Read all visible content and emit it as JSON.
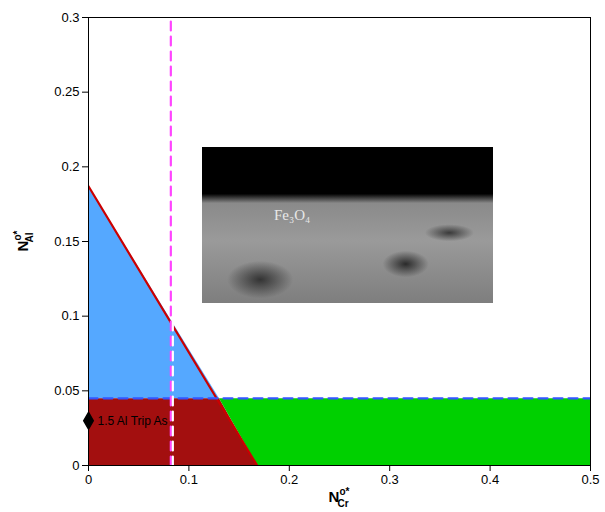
{
  "chart_data": {
    "type": "region_map",
    "xlabel": {
      "base": "N",
      "sup": "o*",
      "sub": "Cr"
    },
    "ylabel": {
      "base": "N",
      "sup": "o*",
      "sub": "Al"
    },
    "xlim": [
      0,
      0.5
    ],
    "ylim": [
      0,
      0.3
    ],
    "xticks": [
      0,
      0.1,
      0.2,
      0.3,
      0.4,
      0.5
    ],
    "yticks": [
      0,
      0.05,
      0.1,
      0.15,
      0.2,
      0.25,
      0.3
    ],
    "regions": [
      {
        "color": "#55a8ff",
        "points": [
          [
            0,
            0.045
          ],
          [
            0,
            0.187
          ],
          [
            0.13,
            0.045
          ]
        ]
      },
      {
        "color": "#a30f0f",
        "points": [
          [
            0,
            0
          ],
          [
            0,
            0.045
          ],
          [
            0.13,
            0.045
          ],
          [
            0.168,
            0
          ]
        ]
      },
      {
        "color": "#00d000",
        "points": [
          [
            0.168,
            0
          ],
          [
            0.13,
            0.045
          ],
          [
            0.5,
            0.045
          ],
          [
            0.5,
            0
          ]
        ]
      }
    ],
    "lines": [
      {
        "color": "#cc0000",
        "line_style": "solid",
        "points": [
          [
            0,
            0.187
          ],
          [
            0.168,
            0
          ]
        ]
      },
      {
        "color": "#3355ff",
        "line_style": "dashed",
        "points": [
          [
            0,
            0.045
          ],
          [
            0.5,
            0.045
          ]
        ]
      },
      {
        "color": "#ff44ff",
        "line_style": "dashed",
        "points": [
          [
            0.082,
            0
          ],
          [
            0.082,
            0.3
          ]
        ]
      },
      {
        "color": "#ffffff",
        "line_style": "dashed",
        "points": [
          [
            0.084,
            0
          ],
          [
            0.084,
            0.097
          ]
        ]
      }
    ],
    "points": [
      {
        "name": "1.5 Al Trip As",
        "x": 0,
        "y": 0.03,
        "marker": "diamond",
        "color": "#000000"
      }
    ],
    "inset": {
      "label": "Fe₃O₄"
    }
  }
}
